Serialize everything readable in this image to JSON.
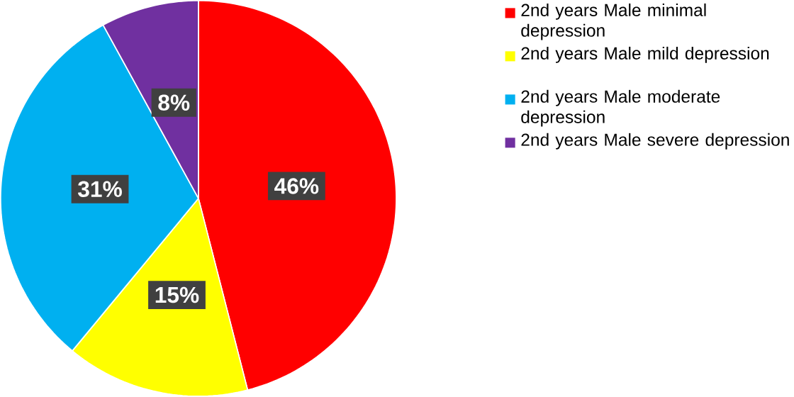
{
  "chart_data": {
    "type": "pie",
    "categories": [
      "2nd years Male minimal depression",
      "2nd years Male mild depression",
      "2nd years Male moderate depression",
      "2nd years Male severe depression"
    ],
    "values": [
      46,
      15,
      31,
      8
    ],
    "value_labels": [
      "46%",
      "15%",
      "31%",
      "8%"
    ],
    "colors": [
      "#ff0000",
      "#ffff00",
      "#00b0f0",
      "#7030a0"
    ],
    "legend": "right"
  }
}
